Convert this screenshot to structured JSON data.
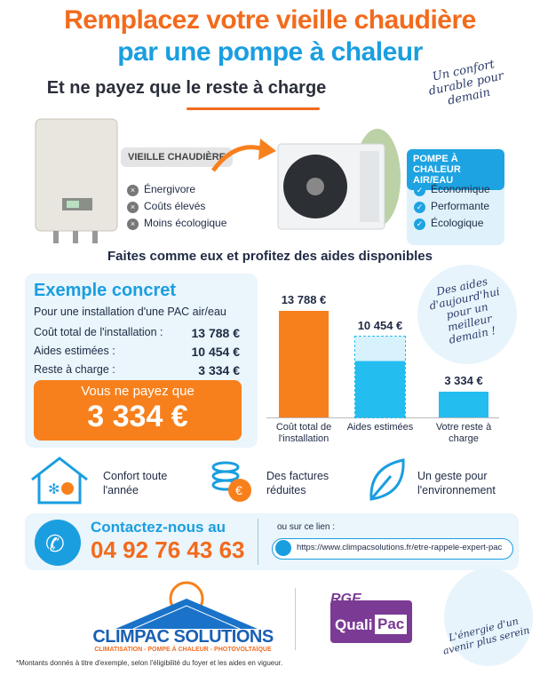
{
  "header": {
    "title_line1": "Remplacez votre vieille chaudière",
    "title_line2": "par une pompe à chaleur",
    "subtitle": "Et ne payez que le reste à charge",
    "tagline": "Un confort durable pour demain"
  },
  "comparison": {
    "old": {
      "title": "VIEILLE CHAUDIÈRE",
      "items": [
        "Énergivore",
        "Coûts élevés",
        "Moins écologique"
      ]
    },
    "new": {
      "title": "POMPE À CHALEUR AIR/EAU",
      "items": [
        "Économique",
        "Performante",
        "Écologique"
      ]
    }
  },
  "banner": "Faites comme eux et profitez des aides disponibles",
  "example": {
    "title": "Exemple concret",
    "intro": "Pour une installation d'une PAC air/eau",
    "rows": [
      [
        "Coût total de l'installation :",
        "13 788 €"
      ],
      [
        "Aides estimées :",
        "10 454 €"
      ],
      [
        "Reste à charge :",
        "3 334 €"
      ]
    ],
    "callout_label": "Vous ne payez que",
    "callout_value": "3 334 €"
  },
  "chart_data": {
    "type": "bar",
    "categories": [
      "Coût total de l'installation",
      "Aides estimées",
      "Votre reste à charge"
    ],
    "values": [
      13788,
      10454,
      3334
    ],
    "value_labels": [
      "13 788 €",
      "10 454 €",
      "3 334 €"
    ],
    "colors": [
      "#f7801c",
      "#23bdf0",
      "#23bdf0"
    ]
  },
  "side_note": "Des aides d'aujourd'hui pour un meilleur demain !",
  "benefits": [
    "Confort toute l'année",
    "Des factures réduites",
    "Un geste pour l'environnement"
  ],
  "contact": {
    "label": "Contactez-nous au",
    "phone": "04 92 76 43 63",
    "link_label": "ou sur ce lien :",
    "url": "https://www.climpacsolutions.fr/etre-rappele-expert-pac"
  },
  "brand": {
    "name": "CLIMPAC SOLUTIONS",
    "tagline": "CLIMATISATION - POMPE À CHALEUR - PHOTOVOLTAÏQUE"
  },
  "certification": {
    "rge": "RGE",
    "quali": "Quali",
    "pac": "Pac"
  },
  "closing": "L'énergie d'un avenir plus serein",
  "footnote": "*Montants donnés à titre d'exemple, selon l'éligibilité du foyer et les aides en vigueur."
}
